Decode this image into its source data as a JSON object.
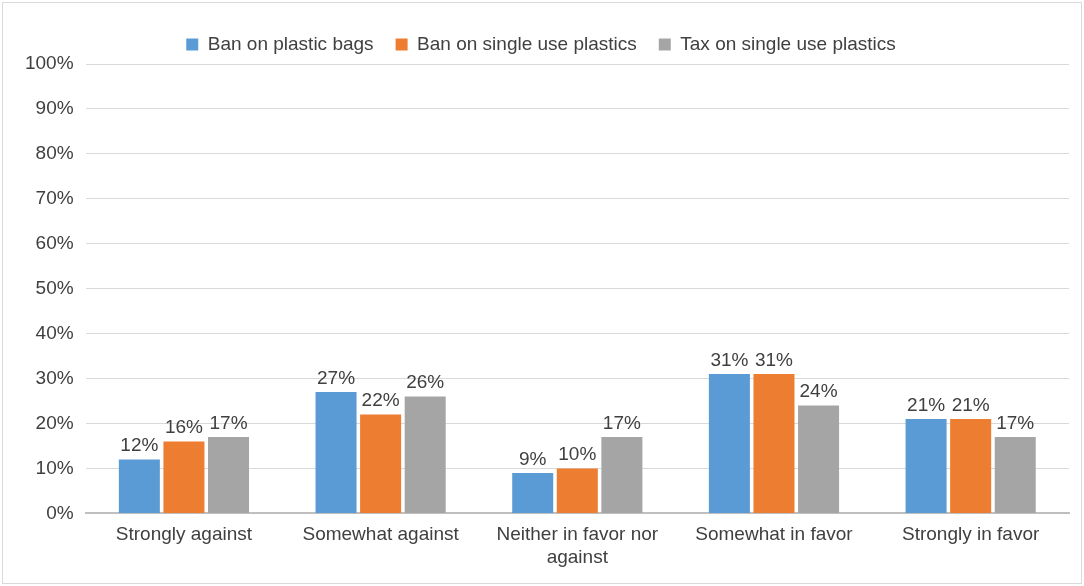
{
  "chart_data": {
    "type": "bar",
    "categories": [
      "Strongly against",
      "Somewhat against",
      "Neither in favor nor against",
      "Somewhat in favor",
      "Strongly in favor"
    ],
    "series": [
      {
        "name": "Ban on plastic bags",
        "color": "#5b9bd5",
        "values": [
          12,
          27,
          9,
          31,
          21
        ],
        "value_labels": [
          "12%",
          "27%",
          "9%",
          "31%",
          "21%"
        ]
      },
      {
        "name": "Ban on single use plastics",
        "color": "#ed7d31",
        "values": [
          16,
          22,
          10,
          31,
          21
        ],
        "value_labels": [
          "16%",
          "22%",
          "10%",
          "31%",
          "21%"
        ]
      },
      {
        "name": "Tax on single use plastics",
        "color": "#a5a5a5",
        "values": [
          17,
          26,
          17,
          24,
          17
        ],
        "value_labels": [
          "17%",
          "26%",
          "17%",
          "24%",
          "17%"
        ]
      }
    ],
    "ylim": [
      0,
      100
    ],
    "yticks": [
      {
        "value": 0,
        "label": "0%"
      },
      {
        "value": 10,
        "label": "10%"
      },
      {
        "value": 20,
        "label": "20%"
      },
      {
        "value": 30,
        "label": "30%"
      },
      {
        "value": 40,
        "label": "40%"
      },
      {
        "value": 50,
        "label": "50%"
      },
      {
        "value": 60,
        "label": "60%"
      },
      {
        "value": 70,
        "label": "70%"
      },
      {
        "value": 80,
        "label": "80%"
      },
      {
        "value": 90,
        "label": "90%"
      },
      {
        "value": 100,
        "label": "100%"
      }
    ],
    "grid": "y",
    "legend": "top"
  }
}
